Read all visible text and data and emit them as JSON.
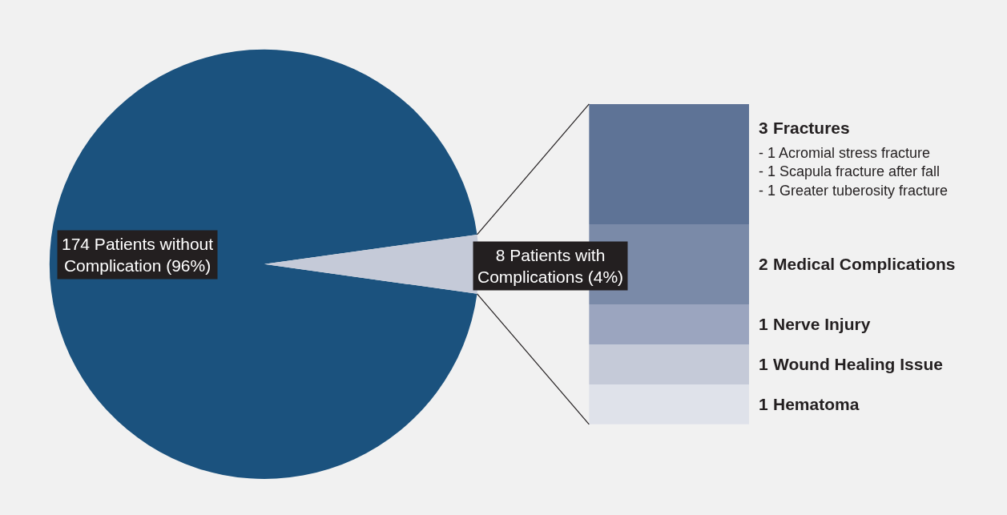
{
  "chart_data": [
    {
      "type": "pie",
      "categories": [
        "174 Patients without\nComplication (96%)",
        "8 Patients with\nComplications (4%)"
      ],
      "values": [
        174,
        8
      ],
      "colors": [
        "#1b527e",
        "#c5cad8"
      ]
    },
    {
      "type": "bar",
      "stacked": true,
      "data_labels": true,
      "categories": [
        null
      ],
      "annotations": [
        "- 1 Acromial stress fracture\n- 1 Scapula fracture after fall\n- 1 Greater tuberosity fracture"
      ],
      "series": [
        {
          "name": "Hematoma",
          "color": "#dfe2ea",
          "values": [
            1
          ]
        },
        {
          "name": "Wound Healing Issue",
          "color": "#c5cad8",
          "values": [
            1
          ]
        },
        {
          "name": "Nerve Injury",
          "color": "#9ba5bf",
          "values": [
            1
          ]
        },
        {
          "name": "Medical Complications",
          "color": "#7a8aa8",
          "values": [
            2
          ]
        },
        {
          "name": "Fractures",
          "color": "#5e7396",
          "values": [
            3
          ]
        }
      ]
    }
  ]
}
